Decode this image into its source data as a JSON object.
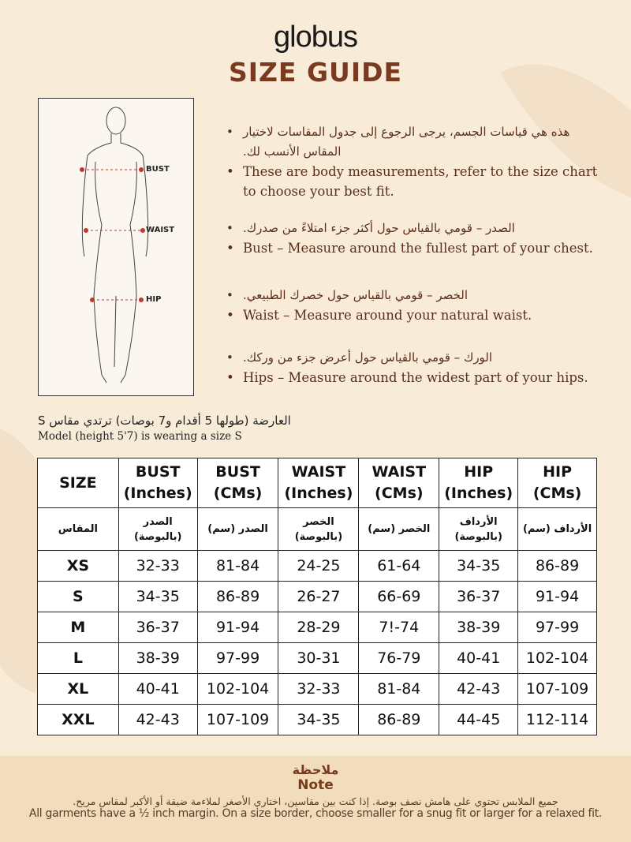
{
  "brand": "globus",
  "title": "SIZE GUIDE",
  "figure": {
    "labels": [
      "BUST",
      "WAIST",
      "HIP"
    ]
  },
  "bullets": [
    {
      "ar": "هذه هي قياسات الجسم، يرجى الرجوع إلى جدول المقاسات لاختيار المقاس الأنسب لك.",
      "en": "These are body measurements, refer to the size chart to choose your best fit."
    },
    {
      "ar": "الصدر – قومي بالقياس حول أكثر جزء امتلاءً من صدرك.",
      "en": "Bust – Measure around the fullest part of your chest."
    },
    {
      "ar": "الخصر – قومي بالقياس حول خصرك الطبيعي.",
      "en": "Waist – Measure around your natural waist."
    },
    {
      "ar": "الورك – قومي بالقياس حول أعرض جزء من وركك.",
      "en": "Hips – Measure around the widest part of your hips."
    }
  ],
  "model": {
    "ar": "العارضة (طولها 5 أقدام و7 بوصات) ترتدي مقاس S",
    "en": "Model (height 5'7) is wearing a size S"
  },
  "table": {
    "headers": [
      "SIZE",
      "BUST (Inches)",
      "BUST (CMs)",
      "WAIST (Inches)",
      "WAIST (CMs)",
      "HIP (Inches)",
      "HIP (CMs)"
    ],
    "headers_ar": [
      "المقاس",
      "الصدر (بالبوصة)",
      "الصدر (سم)",
      "الخصر (بالبوصة)",
      "الخصر (سم)",
      "الأرداف (بالبوصة)",
      "الأرداف (سم)"
    ],
    "rows": [
      [
        "XS",
        "32-33",
        "81-84",
        "24-25",
        "61-64",
        "34-35",
        "86-89"
      ],
      [
        "S",
        "34-35",
        "86-89",
        "26-27",
        "66-69",
        "36-37",
        "91-94"
      ],
      [
        "M",
        "36-37",
        "91-94",
        "28-29",
        "7!-74",
        "38-39",
        "97-99"
      ],
      [
        "L",
        "38-39",
        "97-99",
        "30-31",
        "76-79",
        "40-41",
        "102-104"
      ],
      [
        "XL",
        "40-41",
        "102-104",
        "32-33",
        "81-84",
        "42-43",
        "107-109"
      ],
      [
        "XXL",
        "42-43",
        "107-109",
        "34-35",
        "86-89",
        "44-45",
        "112-114"
      ]
    ]
  },
  "note": {
    "title_ar": "ملاحظة",
    "title_en": "Note",
    "text_ar": "جميع الملابس تحتوي على هامش نصف بوصة. إذا كنت بين مقاسين، اختاري الأصغر لملاءمة ضيقة أو الأكبر لمقاس مريح.",
    "text_en": "All garments have a ½ inch margin. On a size border, choose smaller for a snug fit or larger for a relaxed fit."
  }
}
